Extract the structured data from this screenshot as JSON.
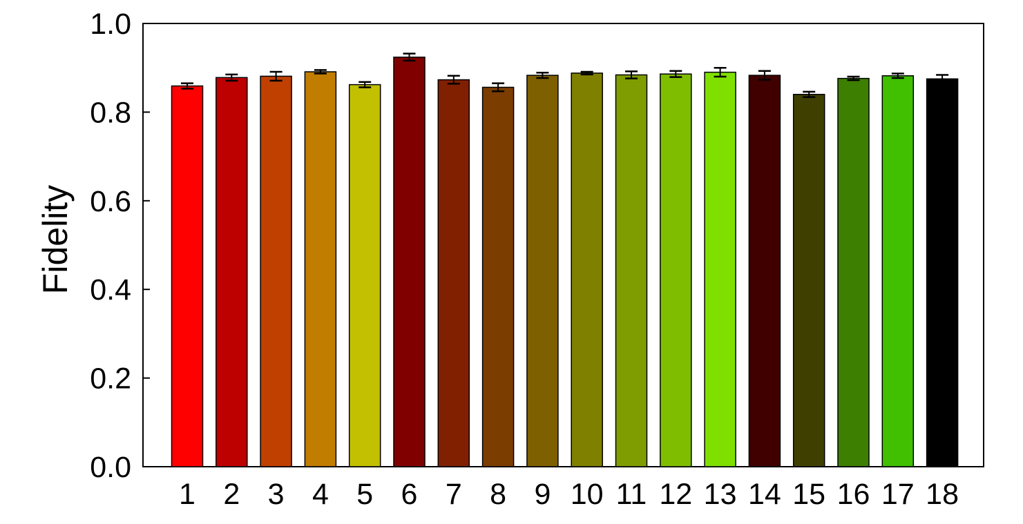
{
  "chart_data": {
    "type": "bar",
    "title": "",
    "xlabel": "",
    "ylabel": "Fidelity",
    "ylim": [
      0.0,
      1.0
    ],
    "yticks": [
      "0.0",
      "0.2",
      "0.4",
      "0.6",
      "0.8",
      "1.0"
    ],
    "grid": false,
    "legend": "none",
    "categories": [
      "1",
      "2",
      "3",
      "4",
      "5",
      "6",
      "7",
      "8",
      "9",
      "10",
      "11",
      "12",
      "13",
      "14",
      "15",
      "16",
      "17",
      "18"
    ],
    "values": [
      0.859,
      0.878,
      0.881,
      0.891,
      0.862,
      0.924,
      0.873,
      0.856,
      0.883,
      0.888,
      0.884,
      0.886,
      0.89,
      0.883,
      0.84,
      0.876,
      0.882,
      0.875
    ],
    "errors": [
      0.006,
      0.007,
      0.01,
      0.004,
      0.006,
      0.008,
      0.009,
      0.009,
      0.006,
      0.003,
      0.008,
      0.007,
      0.01,
      0.01,
      0.006,
      0.004,
      0.005,
      0.009
    ],
    "colors": [
      "#ff0000",
      "#bd0000",
      "#c04000",
      "#c07d00",
      "#c2c000",
      "#800000",
      "#802000",
      "#7c3d00",
      "#7f6000",
      "#808000",
      "#7f9d00",
      "#7fbd00",
      "#7fe000",
      "#400000",
      "#3f4000",
      "#3d7f00",
      "#40c000",
      "#000000"
    ]
  }
}
